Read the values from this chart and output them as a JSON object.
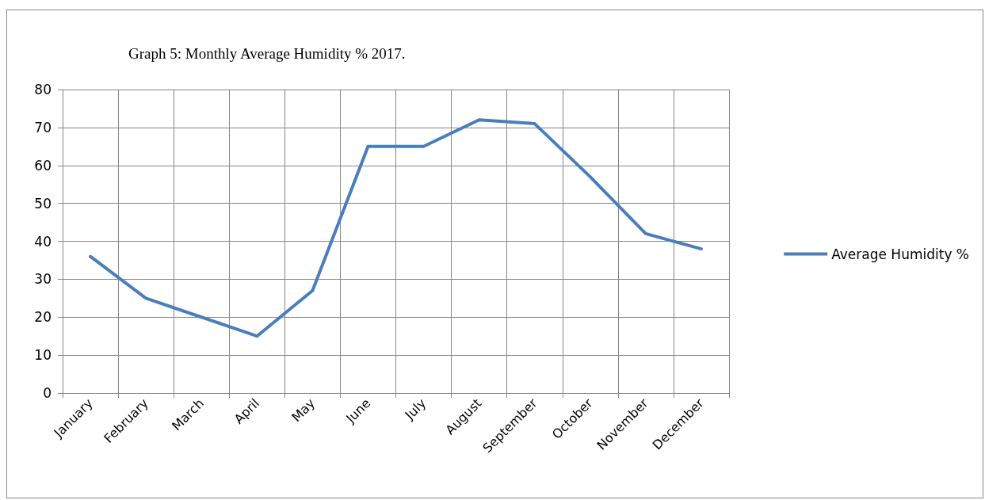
{
  "chart_data": {
    "type": "line",
    "title": "Graph 5: Monthly Average Humidity % 2017.",
    "categories": [
      "January",
      "February",
      "March",
      "April",
      "May",
      "June",
      "July",
      "August",
      "September",
      "October",
      "November",
      "December"
    ],
    "series": [
      {
        "name": "Average Humidity %",
        "color": "#4a7ebb",
        "values": [
          36,
          25,
          20,
          15,
          27,
          65,
          65,
          72,
          71,
          57,
          42,
          38
        ]
      }
    ],
    "ylim": [
      0,
      80
    ],
    "yticks": [
      0,
      10,
      20,
      30,
      40,
      50,
      60,
      70,
      80
    ],
    "grid": true,
    "legend": "right",
    "marker": "none",
    "line_style": "solid"
  }
}
